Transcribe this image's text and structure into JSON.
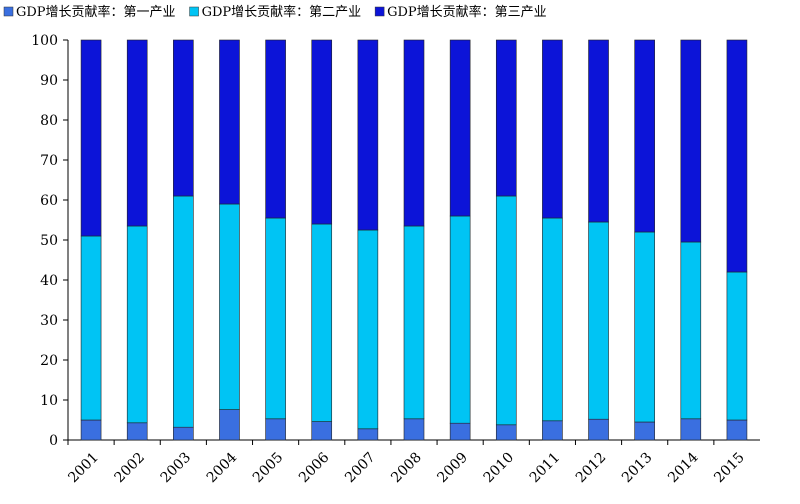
{
  "chart_data": {
    "type": "stacked-bar",
    "categories": [
      "2001",
      "2002",
      "2003",
      "2004",
      "2005",
      "2006",
      "2007",
      "2008",
      "2009",
      "2010",
      "2011",
      "2012",
      "2013",
      "2014",
      "2015"
    ],
    "series": [
      {
        "name": "GDP增长贡献率：第一产业",
        "color": "#3a6fe0",
        "values": [
          5,
          4.3,
          3.2,
          7.6,
          5.3,
          4.6,
          2.8,
          5.3,
          4.2,
          3.8,
          4.8,
          5.2,
          4.5,
          5.3,
          5
        ]
      },
      {
        "name": "GDP增长贡献率：第二产业",
        "color": "#00c4f4",
        "values": [
          46,
          49.2,
          57.8,
          51.4,
          50.2,
          49.4,
          49.7,
          48.2,
          51.8,
          57.2,
          50.7,
          49.3,
          47.5,
          44.2,
          37
        ]
      },
      {
        "name": "GDP增长贡献率：第三产业",
        "color": "#0c14d8",
        "values": [
          49,
          46.5,
          39,
          41,
          44.5,
          46,
          47.5,
          46.5,
          44,
          39,
          44.5,
          45.5,
          48,
          50.5,
          58
        ]
      }
    ],
    "ylim": [
      0,
      100
    ],
    "yticks": [
      0,
      10,
      20,
      30,
      40,
      50,
      60,
      70,
      80,
      90,
      100
    ]
  }
}
